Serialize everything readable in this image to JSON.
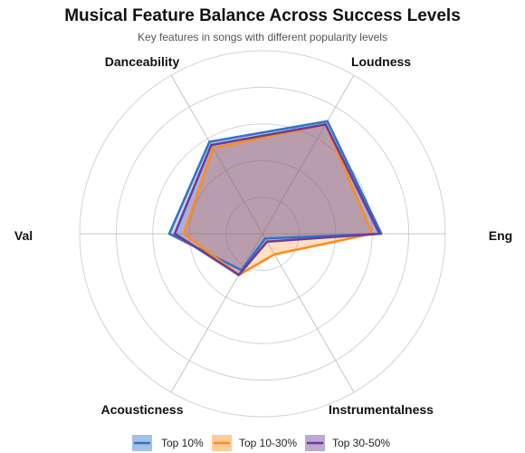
{
  "chart_data": {
    "type": "radar",
    "title": "Musical Feature Balance Across Success Levels",
    "subtitle": "Key features in songs with different popularity levels",
    "axes": [
      "Eng",
      "Loudness",
      "Danceability",
      "Val",
      "Acousticness",
      "Instrumentalness"
    ],
    "rlim": [
      0,
      1
    ],
    "grid_rings": 5,
    "legend_position": "bottom",
    "series": [
      {
        "name": "Top 10%",
        "color": "#3274c6",
        "values": [
          0.65,
          0.71,
          0.58,
          0.51,
          0.23,
          0.03
        ]
      },
      {
        "name": "Top 10-30%",
        "color": "#ff8c1a",
        "values": [
          0.6,
          0.69,
          0.54,
          0.43,
          0.26,
          0.13
        ]
      },
      {
        "name": "Top 30-50%",
        "color": "#6a3d9a",
        "values": [
          0.64,
          0.69,
          0.56,
          0.48,
          0.26,
          0.05
        ]
      }
    ]
  }
}
